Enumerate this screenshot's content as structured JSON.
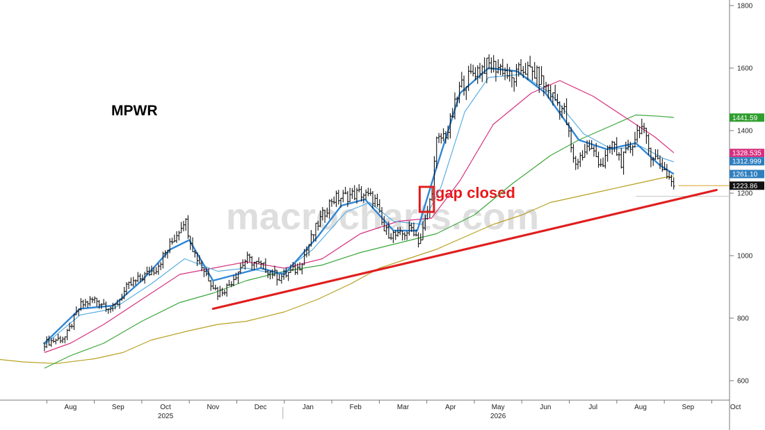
{
  "chart_data": {
    "type": "line",
    "title": "MPWR",
    "watermark": "macrocharts.com",
    "annotation": "gap closed",
    "y_range": [
      560,
      1820
    ],
    "y_ticks": [
      600,
      800,
      1000,
      1200,
      1400,
      1600,
      1800
    ],
    "x_ticks": [
      {
        "label": "Aug",
        "month": 1.5
      },
      {
        "label": "Sep",
        "month": 2.5
      },
      {
        "label": "Oct",
        "month": 3.5
      },
      {
        "label": "Nov",
        "month": 4.5
      },
      {
        "label": "Dec",
        "month": 5.5
      },
      {
        "label": "Jan",
        "month": 6.5
      },
      {
        "label": "Feb",
        "month": 7.5
      },
      {
        "label": "Mar",
        "month": 8.5
      },
      {
        "label": "Apr",
        "month": 9.5
      },
      {
        "label": "May",
        "month": 10.5
      },
      {
        "label": "Jun",
        "month": 11.5
      },
      {
        "label": "Jul",
        "month": 12.5
      },
      {
        "label": "Aug",
        "month": 13.5
      },
      {
        "label": "Sep",
        "month": 14.5
      },
      {
        "label": "Oct",
        "month": 15.5
      }
    ],
    "years": [
      {
        "label": "2025",
        "month": 3.5
      },
      {
        "label": "2026",
        "month": 10.5
      }
    ],
    "price_tags": [
      {
        "value": 1441.59,
        "label": "1441.59",
        "color": "#2e9e2e"
      },
      {
        "value": 1328.535,
        "label": "1328.535",
        "color": "#d6307f"
      },
      {
        "value": 1312.999,
        "label": "1312.999",
        "color": "#2f7fbf"
      },
      {
        "value": 1261.1,
        "label": "1261.10",
        "color": "#2f7fbf"
      },
      {
        "value": 1223.86,
        "label": "1223.86",
        "color": "#111111"
      }
    ],
    "gap_level": 1190,
    "price_anchors": [
      [
        0.95,
        720
      ],
      [
        1.4,
        740
      ],
      [
        1.7,
        840
      ],
      [
        2.0,
        860
      ],
      [
        2.4,
        830
      ],
      [
        2.7,
        900
      ],
      [
        3.0,
        930
      ],
      [
        3.3,
        960
      ],
      [
        3.7,
        1060
      ],
      [
        3.9,
        1120
      ],
      [
        4.1,
        1010
      ],
      [
        4.4,
        930
      ],
      [
        4.6,
        880
      ],
      [
        4.8,
        900
      ],
      [
        5.2,
        990
      ],
      [
        5.6,
        960
      ],
      [
        5.9,
        930
      ],
      [
        6.3,
        960
      ],
      [
        6.7,
        1100
      ],
      [
        7.0,
        1180
      ],
      [
        7.3,
        1190
      ],
      [
        7.6,
        1200
      ],
      [
        7.9,
        1180
      ],
      [
        8.1,
        1080
      ],
      [
        8.4,
        1060
      ],
      [
        8.7,
        1090
      ],
      [
        8.85,
        1040
      ],
      [
        9.0,
        1130
      ],
      [
        9.1,
        1200
      ],
      [
        9.2,
        1360
      ],
      [
        9.45,
        1400
      ],
      [
        9.7,
        1540
      ],
      [
        10.0,
        1590
      ],
      [
        10.3,
        1610
      ],
      [
        10.6,
        1600
      ],
      [
        10.8,
        1560
      ],
      [
        11.0,
        1600
      ],
      [
        11.3,
        1580
      ],
      [
        11.6,
        1520
      ],
      [
        11.9,
        1460
      ],
      [
        12.1,
        1290
      ],
      [
        12.4,
        1350
      ],
      [
        12.7,
        1290
      ],
      [
        12.9,
        1360
      ],
      [
        13.1,
        1300
      ],
      [
        13.3,
        1350
      ],
      [
        13.5,
        1420
      ],
      [
        13.7,
        1330
      ],
      [
        13.9,
        1300
      ],
      [
        14.1,
        1250
      ],
      [
        14.2,
        1224
      ]
    ],
    "ma_anchors": {
      "ma_fast": [
        [
          0.95,
          720
        ],
        [
          1.7,
          830
        ],
        [
          2.4,
          840
        ],
        [
          3.0,
          920
        ],
        [
          3.6,
          1020
        ],
        [
          4.0,
          1050
        ],
        [
          4.5,
          920
        ],
        [
          5.0,
          940
        ],
        [
          5.5,
          960
        ],
        [
          6.0,
          940
        ],
        [
          6.7,
          1060
        ],
        [
          7.2,
          1160
        ],
        [
          7.7,
          1180
        ],
        [
          8.3,
          1080
        ],
        [
          8.8,
          1080
        ],
        [
          9.2,
          1280
        ],
        [
          9.7,
          1520
        ],
        [
          10.3,
          1600
        ],
        [
          10.9,
          1590
        ],
        [
          11.5,
          1520
        ],
        [
          12.2,
          1370
        ],
        [
          12.8,
          1340
        ],
        [
          13.4,
          1360
        ],
        [
          13.9,
          1290
        ],
        [
          14.2,
          1261
        ]
      ],
      "ma_mid": [
        [
          0.95,
          715
        ],
        [
          1.7,
          810
        ],
        [
          2.4,
          830
        ],
        [
          3.2,
          910
        ],
        [
          3.9,
          990
        ],
        [
          4.6,
          950
        ],
        [
          5.2,
          960
        ],
        [
          5.9,
          940
        ],
        [
          6.6,
          1020
        ],
        [
          7.3,
          1140
        ],
        [
          7.8,
          1170
        ],
        [
          8.3,
          1110
        ],
        [
          8.9,
          1100
        ],
        [
          9.3,
          1220
        ],
        [
          9.8,
          1460
        ],
        [
          10.3,
          1570
        ],
        [
          11.0,
          1580
        ],
        [
          11.6,
          1520
        ],
        [
          12.3,
          1390
        ],
        [
          12.9,
          1340
        ],
        [
          13.5,
          1350
        ],
        [
          14.0,
          1310
        ],
        [
          14.2,
          1300
        ]
      ],
      "ma_50": [
        [
          0.95,
          690
        ],
        [
          1.5,
          720
        ],
        [
          2.2,
          780
        ],
        [
          3.0,
          860
        ],
        [
          3.8,
          940
        ],
        [
          4.5,
          960
        ],
        [
          5.2,
          980
        ],
        [
          6.0,
          960
        ],
        [
          6.8,
          990
        ],
        [
          7.6,
          1070
        ],
        [
          8.4,
          1110
        ],
        [
          9.1,
          1120
        ],
        [
          9.7,
          1240
        ],
        [
          10.4,
          1420
        ],
        [
          11.2,
          1520
        ],
        [
          11.8,
          1560
        ],
        [
          12.5,
          1510
        ],
        [
          13.2,
          1440
        ],
        [
          13.8,
          1380
        ],
        [
          14.2,
          1329
        ]
      ],
      "ma_100": [
        [
          0.95,
          640
        ],
        [
          1.5,
          680
        ],
        [
          2.2,
          720
        ],
        [
          3.0,
          790
        ],
        [
          3.8,
          850
        ],
        [
          4.5,
          880
        ],
        [
          5.2,
          920
        ],
        [
          6.0,
          950
        ],
        [
          6.8,
          970
        ],
        [
          7.6,
          1010
        ],
        [
          8.4,
          1040
        ],
        [
          9.2,
          1070
        ],
        [
          10.0,
          1130
        ],
        [
          10.8,
          1230
        ],
        [
          11.6,
          1320
        ],
        [
          12.2,
          1370
        ],
        [
          12.8,
          1410
        ],
        [
          13.4,
          1450
        ],
        [
          13.9,
          1446
        ],
        [
          14.2,
          1442
        ]
      ],
      "ma_200": [
        [
          0,
          668
        ],
        [
          0.5,
          660
        ],
        [
          1.2,
          655
        ],
        [
          2.0,
          670
        ],
        [
          2.6,
          690
        ],
        [
          3.2,
          730
        ],
        [
          4.0,
          760
        ],
        [
          4.6,
          780
        ],
        [
          5.2,
          790
        ],
        [
          6.0,
          820
        ],
        [
          6.7,
          860
        ],
        [
          7.4,
          910
        ],
        [
          8.0,
          960
        ],
        [
          8.6,
          990
        ],
        [
          9.2,
          1020
        ],
        [
          9.8,
          1060
        ],
        [
          10.4,
          1100
        ],
        [
          11.0,
          1130
        ],
        [
          11.6,
          1170
        ],
        [
          12.2,
          1190
        ],
        [
          12.8,
          1210
        ],
        [
          13.4,
          1230
        ],
        [
          14.0,
          1250
        ],
        [
          14.2,
          1255
        ]
      ]
    },
    "trendline": [
      [
        4.5,
        830
      ],
      [
        15.1,
        1210
      ]
    ],
    "gap_box": [
      [
        8.85,
        1140
      ],
      [
        9.15,
        1220
      ]
    ]
  }
}
